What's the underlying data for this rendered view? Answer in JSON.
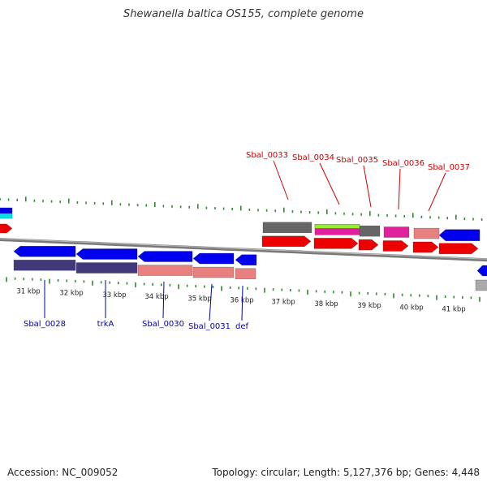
{
  "title": "Shewanella baltica OS155, complete genome",
  "footer": {
    "accession": "Accession: NC_009052",
    "stats": "Topology: circular; Length: 5,127,376 bp; Genes: 4,448"
  },
  "colors": {
    "backbone": "#7a7a7a",
    "tick": "#2e8b2e",
    "forward_gene": "#0000ee",
    "forward_cds": "#42397a",
    "forward_pink": "#e88080",
    "reverse_gene": "#ee0000",
    "reverse_label": "#cc0000",
    "forward_label": "#0000aa",
    "gray": "#666666",
    "light_gray": "#aaaaaa",
    "green": "#99ee33",
    "magenta": "#e0209c",
    "cyan": "#00e5ee"
  },
  "scale": [
    {
      "kbp": 31,
      "label": "31 kbp"
    },
    {
      "kbp": 32,
      "label": "32 kbp"
    },
    {
      "kbp": 33,
      "label": "33 kbp"
    },
    {
      "kbp": 34,
      "label": "34 kbp"
    },
    {
      "kbp": 35,
      "label": "35 kbp"
    },
    {
      "kbp": 36,
      "label": "36 kbp"
    },
    {
      "kbp": 37,
      "label": "37 kbp"
    },
    {
      "kbp": 38,
      "label": "38 kbp"
    },
    {
      "kbp": 39,
      "label": "39 kbp"
    },
    {
      "kbp": 40,
      "label": "40 kbp"
    },
    {
      "kbp": 41,
      "label": "41 kbp"
    }
  ],
  "forward_labels": [
    "Sbal_0028",
    "trkA",
    "Sbal_0030",
    "Sbal_0031",
    "def"
  ],
  "reverse_labels": [
    "Sbal_0033",
    "Sbal_0034",
    "Sbal_0035",
    "Sbal_0036",
    "Sbal_0037"
  ]
}
